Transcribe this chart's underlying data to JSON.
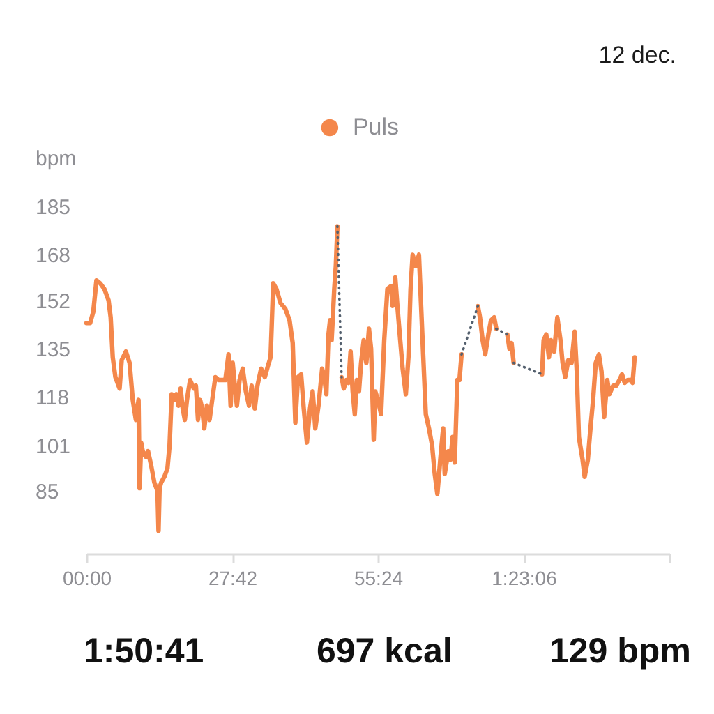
{
  "chart_data": {
    "type": "line",
    "ylabel": "bpm",
    "annotations": [
      "12 dec.",
      "1:50:41",
      "697 kcal",
      "129 bpm"
    ],
    "xlim": [
      0,
      110.8
    ],
    "xticks": [
      {
        "value": 0,
        "label": "00:00"
      },
      {
        "value": 27.7,
        "label": "27:42"
      },
      {
        "value": 55.4,
        "label": "55:24"
      },
      {
        "value": 83.1,
        "label": "1:23:06"
      },
      {
        "value": 110.8,
        "label": null
      }
    ],
    "ylim": [
      63,
      185
    ],
    "yticks": [
      85,
      101,
      118,
      135,
      152,
      168,
      185
    ],
    "legend": "top",
    "series": [
      {
        "name": "Puls",
        "color": "#f4874b",
        "x": [
          0,
          0.7,
          1.3,
          1.9,
          2.6,
          3.4,
          4.2,
          4.6,
          5.0,
          5.5,
          6.3,
          6.7,
          7.5,
          8.2,
          8.8,
          9.4,
          9.9,
          10.1,
          10.4,
          10.7,
          11.3,
          11.7,
          12.3,
          12.9,
          13.5,
          13.7,
          13.9,
          14.2,
          14.8,
          15.4,
          15.8,
          16.2,
          16.6,
          17.1,
          17.5,
          17.9,
          18.3,
          18.7,
          19.1,
          19.7,
          20.4,
          20.8,
          21.2,
          21.6,
          22.0,
          22.4,
          22.9,
          23.4,
          23.9,
          24.5,
          25.1,
          25.8,
          26.4,
          27.0,
          27.4,
          27.8,
          28.2,
          28.6,
          29.1,
          29.7,
          30.3,
          30.9,
          31.4,
          32.0,
          32.5,
          33.2,
          33.9,
          34.5,
          35.0,
          35.5,
          36.1,
          36.9,
          37.8,
          38.6,
          39.2,
          39.7,
          40.2,
          40.8,
          41.3,
          41.9,
          42.5,
          43.0,
          43.5,
          44.1,
          44.8,
          45.2,
          45.6,
          46.0,
          46.3,
          46.6,
          47.1,
          47.4,
          47.7,
          48.1,
          48.5,
          48.9,
          49.4,
          49.8,
          50.2,
          50.6,
          51.0,
          51.4,
          51.8,
          52.2,
          52.7,
          53.2,
          53.7,
          54.1,
          54.6,
          54.9,
          55.4,
          56.0,
          56.6,
          57.2,
          57.9,
          58.2,
          58.7,
          59.1,
          59.5,
          60.1,
          60.7,
          61.2,
          61.6,
          62.0,
          62.6,
          63.2,
          63.7,
          64.0,
          64.5,
          65.1,
          65.7,
          66.2,
          66.7,
          67.3,
          67.8,
          68.1,
          68.8,
          69.2,
          69.6,
          70.0,
          70.5,
          70.9,
          71.3,
          72.8,
          74.4,
          74.8,
          75.3,
          75.8,
          76.4,
          76.9,
          77.5,
          77.9,
          79.0,
          80.0,
          80.4,
          80.8,
          81.2,
          83.9,
          86.6,
          86.9,
          87.4,
          87.9,
          88.3,
          88.9,
          89.5,
          90.1,
          90.5,
          91.0,
          91.6,
          92.2,
          92.8,
          93.2,
          93.6,
          94.3,
          94.7,
          95.3,
          95.8,
          96.3,
          96.8,
          97.4,
          97.9,
          98.4,
          99.0,
          99.4,
          100.1,
          100.7,
          101.3,
          101.8,
          102.3,
          102.9,
          103.4,
          103.8,
          104.2
        ],
        "values": [
          144,
          144,
          148,
          159,
          158,
          156,
          152,
          146,
          132,
          125,
          121,
          131,
          134,
          130,
          117,
          110,
          117,
          86,
          102,
          99,
          97,
          99,
          94,
          88,
          85,
          71,
          86,
          88,
          90,
          93,
          101,
          119,
          117,
          119,
          115,
          121,
          114,
          110,
          117,
          124,
          121,
          122,
          110,
          117,
          114,
          107,
          115,
          110,
          117,
          125,
          124,
          124,
          124,
          133,
          115,
          130,
          122,
          115,
          124,
          128,
          120,
          115,
          122,
          114,
          122,
          128,
          125,
          129,
          132,
          158,
          156,
          151,
          149,
          145,
          137,
          109,
          125,
          126,
          114,
          102,
          114,
          120,
          107,
          115,
          128,
          125,
          119,
          140,
          145,
          138,
          156,
          164,
          178,
          null,
          125,
          121,
          124,
          123,
          134,
          120,
          112,
          124,
          120,
          130,
          138,
          130,
          142,
          135,
          103,
          120,
          117,
          112,
          138,
          156,
          157,
          150,
          160,
          150,
          141,
          128,
          119,
          132,
          156,
          168,
          164,
          168,
          146,
          133,
          112,
          107,
          101,
          91,
          84,
          97,
          107,
          91,
          99,
          96,
          104,
          95,
          124,
          124,
          133,
          null,
          150,
          146,
          138,
          133,
          140,
          145,
          146,
          142,
          null,
          140,
          135,
          137,
          130,
          null,
          126,
          138,
          140,
          132,
          138,
          134,
          146,
          138,
          130,
          125,
          131,
          130,
          141,
          127,
          104,
          96,
          90,
          96,
          107,
          117,
          130,
          133,
          127,
          111,
          124,
          119,
          122,
          122,
          124,
          126,
          123,
          124,
          124,
          123,
          132
        ]
      },
      {
        "color": "#54606e",
        "line_style": "dotted",
        "x": [
          47.7,
          48.5,
          49.0,
          71.3,
          74.4,
          75.0,
          77.9,
          80.0,
          80.5,
          81.2,
          86.6
        ],
        "values": [
          178,
          125,
          null,
          133,
          150,
          null,
          142,
          140,
          null,
          130,
          126
        ]
      }
    ]
  }
}
